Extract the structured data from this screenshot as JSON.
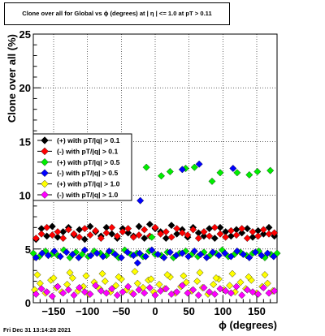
{
  "title": "Clone  over all for Global vs ϕ (degrees) at |  η | <= 1.0 at pT > 0.11",
  "footer": "Fri Dec 31 13:14:28 2021",
  "chart_data": {
    "type": "scatter",
    "xlabel": "ϕ (degrees)",
    "ylabel": "Clone  over all (%)",
    "xlim": [
      -180,
      180
    ],
    "ylim": [
      0,
      25
    ],
    "grid": true,
    "x_tick_labels": [
      "−150",
      "−100",
      "−50",
      "0",
      "50",
      "100",
      "150"
    ],
    "x_tick_values": [
      -150,
      -100,
      -50,
      0,
      50,
      100,
      150
    ],
    "y_tick_labels": [
      "0",
      "5",
      "10",
      "15",
      "20",
      "25"
    ],
    "y_tick_values": [
      0,
      5,
      10,
      15,
      20,
      25
    ],
    "legend_position": "center-left",
    "series": [
      {
        "name": "(+) with pT/|q| > 0.1",
        "color": "#000000",
        "marker": "diamond",
        "x": [
          -176,
          -168,
          -160,
          -152,
          -144,
          -136,
          -128,
          -120,
          -112,
          -104,
          -96,
          -88,
          -80,
          -72,
          -64,
          -56,
          -48,
          -40,
          -32,
          -24,
          -16,
          -8,
          0,
          8,
          16,
          24,
          32,
          40,
          48,
          56,
          64,
          72,
          80,
          88,
          96,
          104,
          112,
          120,
          128,
          136,
          144,
          152,
          160,
          168,
          176
        ],
        "y": [
          5.9,
          6.9,
          6.2,
          7.1,
          6.1,
          6.6,
          7.0,
          6.3,
          6.8,
          5.9,
          7.1,
          6.6,
          6.2,
          7.0,
          6.4,
          6.0,
          6.9,
          6.5,
          6.2,
          7.1,
          6.0,
          7.3,
          6.9,
          6.6,
          6.0,
          7.2,
          6.4,
          6.8,
          6.1,
          7.0,
          6.5,
          6.2,
          6.9,
          6.0,
          7.0,
          6.6,
          6.2,
          6.8,
          6.5,
          6.9,
          6.1,
          6.7,
          6.4,
          7.0,
          6.2
        ]
      },
      {
        "name": "(-) with pT/|q| > 0.1",
        "color": "#ff0000",
        "marker": "diamond",
        "x": [
          -176,
          -168,
          -160,
          -152,
          -144,
          -136,
          -128,
          -120,
          -112,
          -104,
          -96,
          -88,
          -80,
          -72,
          -64,
          -56,
          -48,
          -40,
          -32,
          -24,
          -16,
          -8,
          0,
          8,
          16,
          24,
          32,
          40,
          48,
          56,
          64,
          72,
          80,
          88,
          96,
          104,
          112,
          120,
          128,
          136,
          144,
          152,
          160,
          168,
          176
        ],
        "y": [
          6.0,
          6.4,
          7.0,
          6.3,
          6.6,
          6.0,
          6.8,
          6.4,
          6.1,
          6.9,
          6.3,
          6.7,
          6.0,
          6.5,
          7.0,
          6.2,
          6.6,
          6.9,
          6.1,
          6.3,
          6.8,
          6.2,
          7.0,
          6.4,
          6.6,
          6.1,
          6.9,
          6.5,
          6.3,
          6.8,
          6.0,
          6.6,
          6.2,
          7.0,
          6.4,
          6.1,
          6.7,
          6.3,
          6.9,
          6.0,
          6.6,
          6.2,
          6.8,
          6.4,
          6.5
        ]
      },
      {
        "name": "(+) with pT/|q| > 0.5",
        "color": "#00ee00",
        "marker": "diamond",
        "x": [
          -180,
          -171,
          -162,
          -153,
          -144,
          -135,
          -126,
          -117,
          -108,
          -99,
          -90,
          -81,
          -72,
          -63,
          -54,
          -45,
          -36,
          -27,
          -18,
          -9,
          0,
          9,
          18,
          27,
          36,
          45,
          54,
          63,
          72,
          81,
          90,
          99,
          108,
          117,
          126,
          135,
          144,
          153,
          162,
          171,
          180,
          -13,
          -5,
          9,
          22,
          45,
          58,
          84,
          96,
          121,
          139,
          151,
          170
        ],
        "y": [
          4.6,
          4.3,
          4.8,
          4.5,
          4.4,
          4.9,
          4.2,
          4.7,
          4.5,
          4.3,
          4.8,
          4.6,
          4.4,
          4.7,
          4.2,
          4.9,
          4.5,
          4.6,
          4.3,
          4.8,
          4.5,
          4.4,
          4.7,
          4.2,
          4.6,
          4.8,
          4.5,
          4.3,
          4.7,
          4.4,
          4.6,
          4.9,
          4.3,
          4.5,
          4.7,
          4.4,
          4.6,
          4.8,
          4.2,
          4.5,
          4.6,
          12.6,
          6.1,
          11.8,
          12.2,
          12.5,
          12.6,
          11.3,
          12.1,
          12.1,
          11.9,
          12.2,
          12.3
        ]
      },
      {
        "name": "(-) with pT/|q| > 0.5",
        "color": "#0000ff",
        "marker": "diamond",
        "x": [
          -176,
          -167,
          -158,
          -149,
          -140,
          -131,
          -122,
          -113,
          -104,
          -95,
          -86,
          -77,
          -68,
          -59,
          -50,
          -41,
          -32,
          -23,
          -14,
          -5,
          4,
          13,
          22,
          31,
          40,
          49,
          58,
          67,
          76,
          85,
          94,
          103,
          112,
          121,
          130,
          139,
          148,
          157,
          166,
          175,
          -22,
          -26,
          40,
          65,
          115
        ],
        "y": [
          4.2,
          4.6,
          4.4,
          4.8,
          4.3,
          4.7,
          4.5,
          4.2,
          4.9,
          4.4,
          4.6,
          4.3,
          4.8,
          4.5,
          4.2,
          4.7,
          4.4,
          4.6,
          4.3,
          4.9,
          4.5,
          4.2,
          4.7,
          4.4,
          4.6,
          4.3,
          4.8,
          4.5,
          4.2,
          4.7,
          4.4,
          4.6,
          4.3,
          4.8,
          4.5,
          4.2,
          4.7,
          4.4,
          4.6,
          4.3,
          9.5,
          3.7,
          12.4,
          12.9,
          12.5
        ]
      },
      {
        "name": "(+) with pT/|q| > 1.0",
        "color": "#ffff00",
        "marker": "diamond",
        "x": [
          -178,
          -170,
          -162,
          -154,
          -146,
          -138,
          -130,
          -122,
          -114,
          -106,
          -98,
          -90,
          -82,
          -74,
          -66,
          -58,
          -50,
          -42,
          -34,
          -26,
          -18,
          -10,
          -2,
          6,
          14,
          22,
          30,
          38,
          46,
          54,
          62,
          70,
          78,
          86,
          94,
          102,
          110,
          118,
          126,
          134,
          142,
          150,
          158,
          166,
          174,
          -174,
          -150,
          -126,
          -102,
          -78,
          -54,
          -30,
          -6,
          18,
          42,
          66,
          90,
          114,
          138,
          162
        ],
        "y": [
          1.2,
          1.8,
          0.9,
          2.1,
          1.4,
          1.0,
          1.7,
          2.3,
          1.1,
          1.5,
          0.8,
          1.9,
          1.3,
          2.0,
          1.0,
          1.6,
          2.2,
          1.2,
          0.9,
          1.8,
          1.4,
          2.1,
          1.0,
          1.7,
          1.3,
          2.4,
          0.9,
          1.5,
          1.9,
          1.1,
          2.0,
          1.4,
          0.8,
          1.7,
          2.2,
          1.2,
          1.6,
          1.0,
          1.9,
          1.3,
          2.1,
          0.9,
          1.5,
          1.8,
          1.1,
          2.6,
          2.3,
          2.8,
          2.5,
          2.7,
          2.4,
          2.9,
          2.2,
          2.6,
          2.5,
          2.8,
          2.3,
          2.7,
          2.4,
          2.6
        ]
      },
      {
        "name": "(-) with pT/|q| > 1.0",
        "color": "#ff00ff",
        "marker": "diamond",
        "x": [
          -176,
          -168,
          -160,
          -152,
          -144,
          -136,
          -128,
          -120,
          -112,
          -104,
          -96,
          -88,
          -80,
          -72,
          -64,
          -56,
          -48,
          -40,
          -32,
          -24,
          -16,
          -8,
          0,
          8,
          16,
          24,
          32,
          40,
          48,
          56,
          64,
          72,
          80,
          88,
          96,
          104,
          112,
          120,
          128,
          136,
          144,
          152,
          160,
          168,
          176
        ],
        "y": [
          0.8,
          1.3,
          1.0,
          0.6,
          1.5,
          0.9,
          1.2,
          0.7,
          1.4,
          1.0,
          0.8,
          1.6,
          1.1,
          0.9,
          1.3,
          0.7,
          1.0,
          1.5,
          0.8,
          1.2,
          0.9,
          1.4,
          0.7,
          1.1,
          1.3,
          0.8,
          1.0,
          1.6,
          0.9,
          1.2,
          0.7,
          1.4,
          1.0,
          0.8,
          1.3,
          1.1,
          0.9,
          1.5,
          0.7,
          1.2,
          1.0,
          0.8,
          1.4,
          0.9,
          1.1
        ]
      }
    ]
  }
}
